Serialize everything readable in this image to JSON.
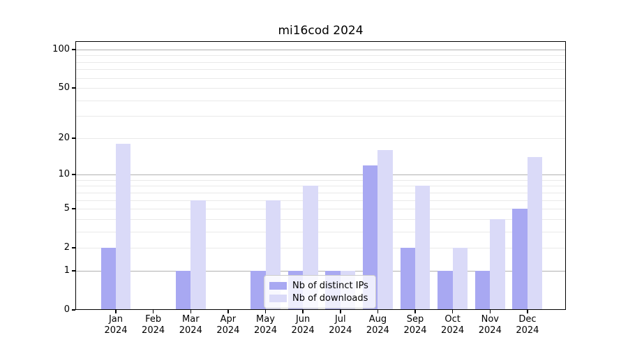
{
  "chart_data": {
    "type": "bar",
    "title": "mi16cod 2024",
    "categories": [
      {
        "month": "Jan",
        "year": "2024"
      },
      {
        "month": "Feb",
        "year": "2024"
      },
      {
        "month": "Mar",
        "year": "2024"
      },
      {
        "month": "Apr",
        "year": "2024"
      },
      {
        "month": "May",
        "year": "2024"
      },
      {
        "month": "Jun",
        "year": "2024"
      },
      {
        "month": "Jul",
        "year": "2024"
      },
      {
        "month": "Aug",
        "year": "2024"
      },
      {
        "month": "Sep",
        "year": "2024"
      },
      {
        "month": "Oct",
        "year": "2024"
      },
      {
        "month": "Nov",
        "year": "2024"
      },
      {
        "month": "Dec",
        "year": "2024"
      }
    ],
    "series": [
      {
        "name": "Nb of distinct IPs",
        "color": "#a8a8f2",
        "values": [
          2,
          0,
          1,
          0,
          1,
          1,
          1,
          12,
          2,
          1,
          1,
          5
        ]
      },
      {
        "name": "Nb of downloads",
        "color": "#dadaf8",
        "values": [
          18,
          0,
          6,
          0,
          6,
          8,
          1,
          16,
          8,
          2,
          4,
          14
        ]
      }
    ],
    "xlabel": "",
    "ylabel": "",
    "yscale": "log1p",
    "ylim": [
      0,
      116
    ],
    "ytick_labels": [
      "0",
      "1",
      "2",
      "5",
      "10",
      "20",
      "50",
      "100"
    ],
    "ytick_values": [
      0,
      1,
      2,
      5,
      10,
      20,
      50,
      100
    ],
    "major_grid_values": [
      1,
      10,
      100
    ],
    "minor_grid_values": [
      2,
      3,
      4,
      5,
      6,
      7,
      8,
      9,
      20,
      30,
      40,
      50,
      60,
      70,
      80,
      90
    ],
    "grid": true,
    "legend_position": "inside-lower-center",
    "colors": {
      "major_grid": "#b0b0b0",
      "minor_grid": "#e9e9e9",
      "spine": "#000000",
      "text": "#000000",
      "background": "#ffffff"
    }
  }
}
